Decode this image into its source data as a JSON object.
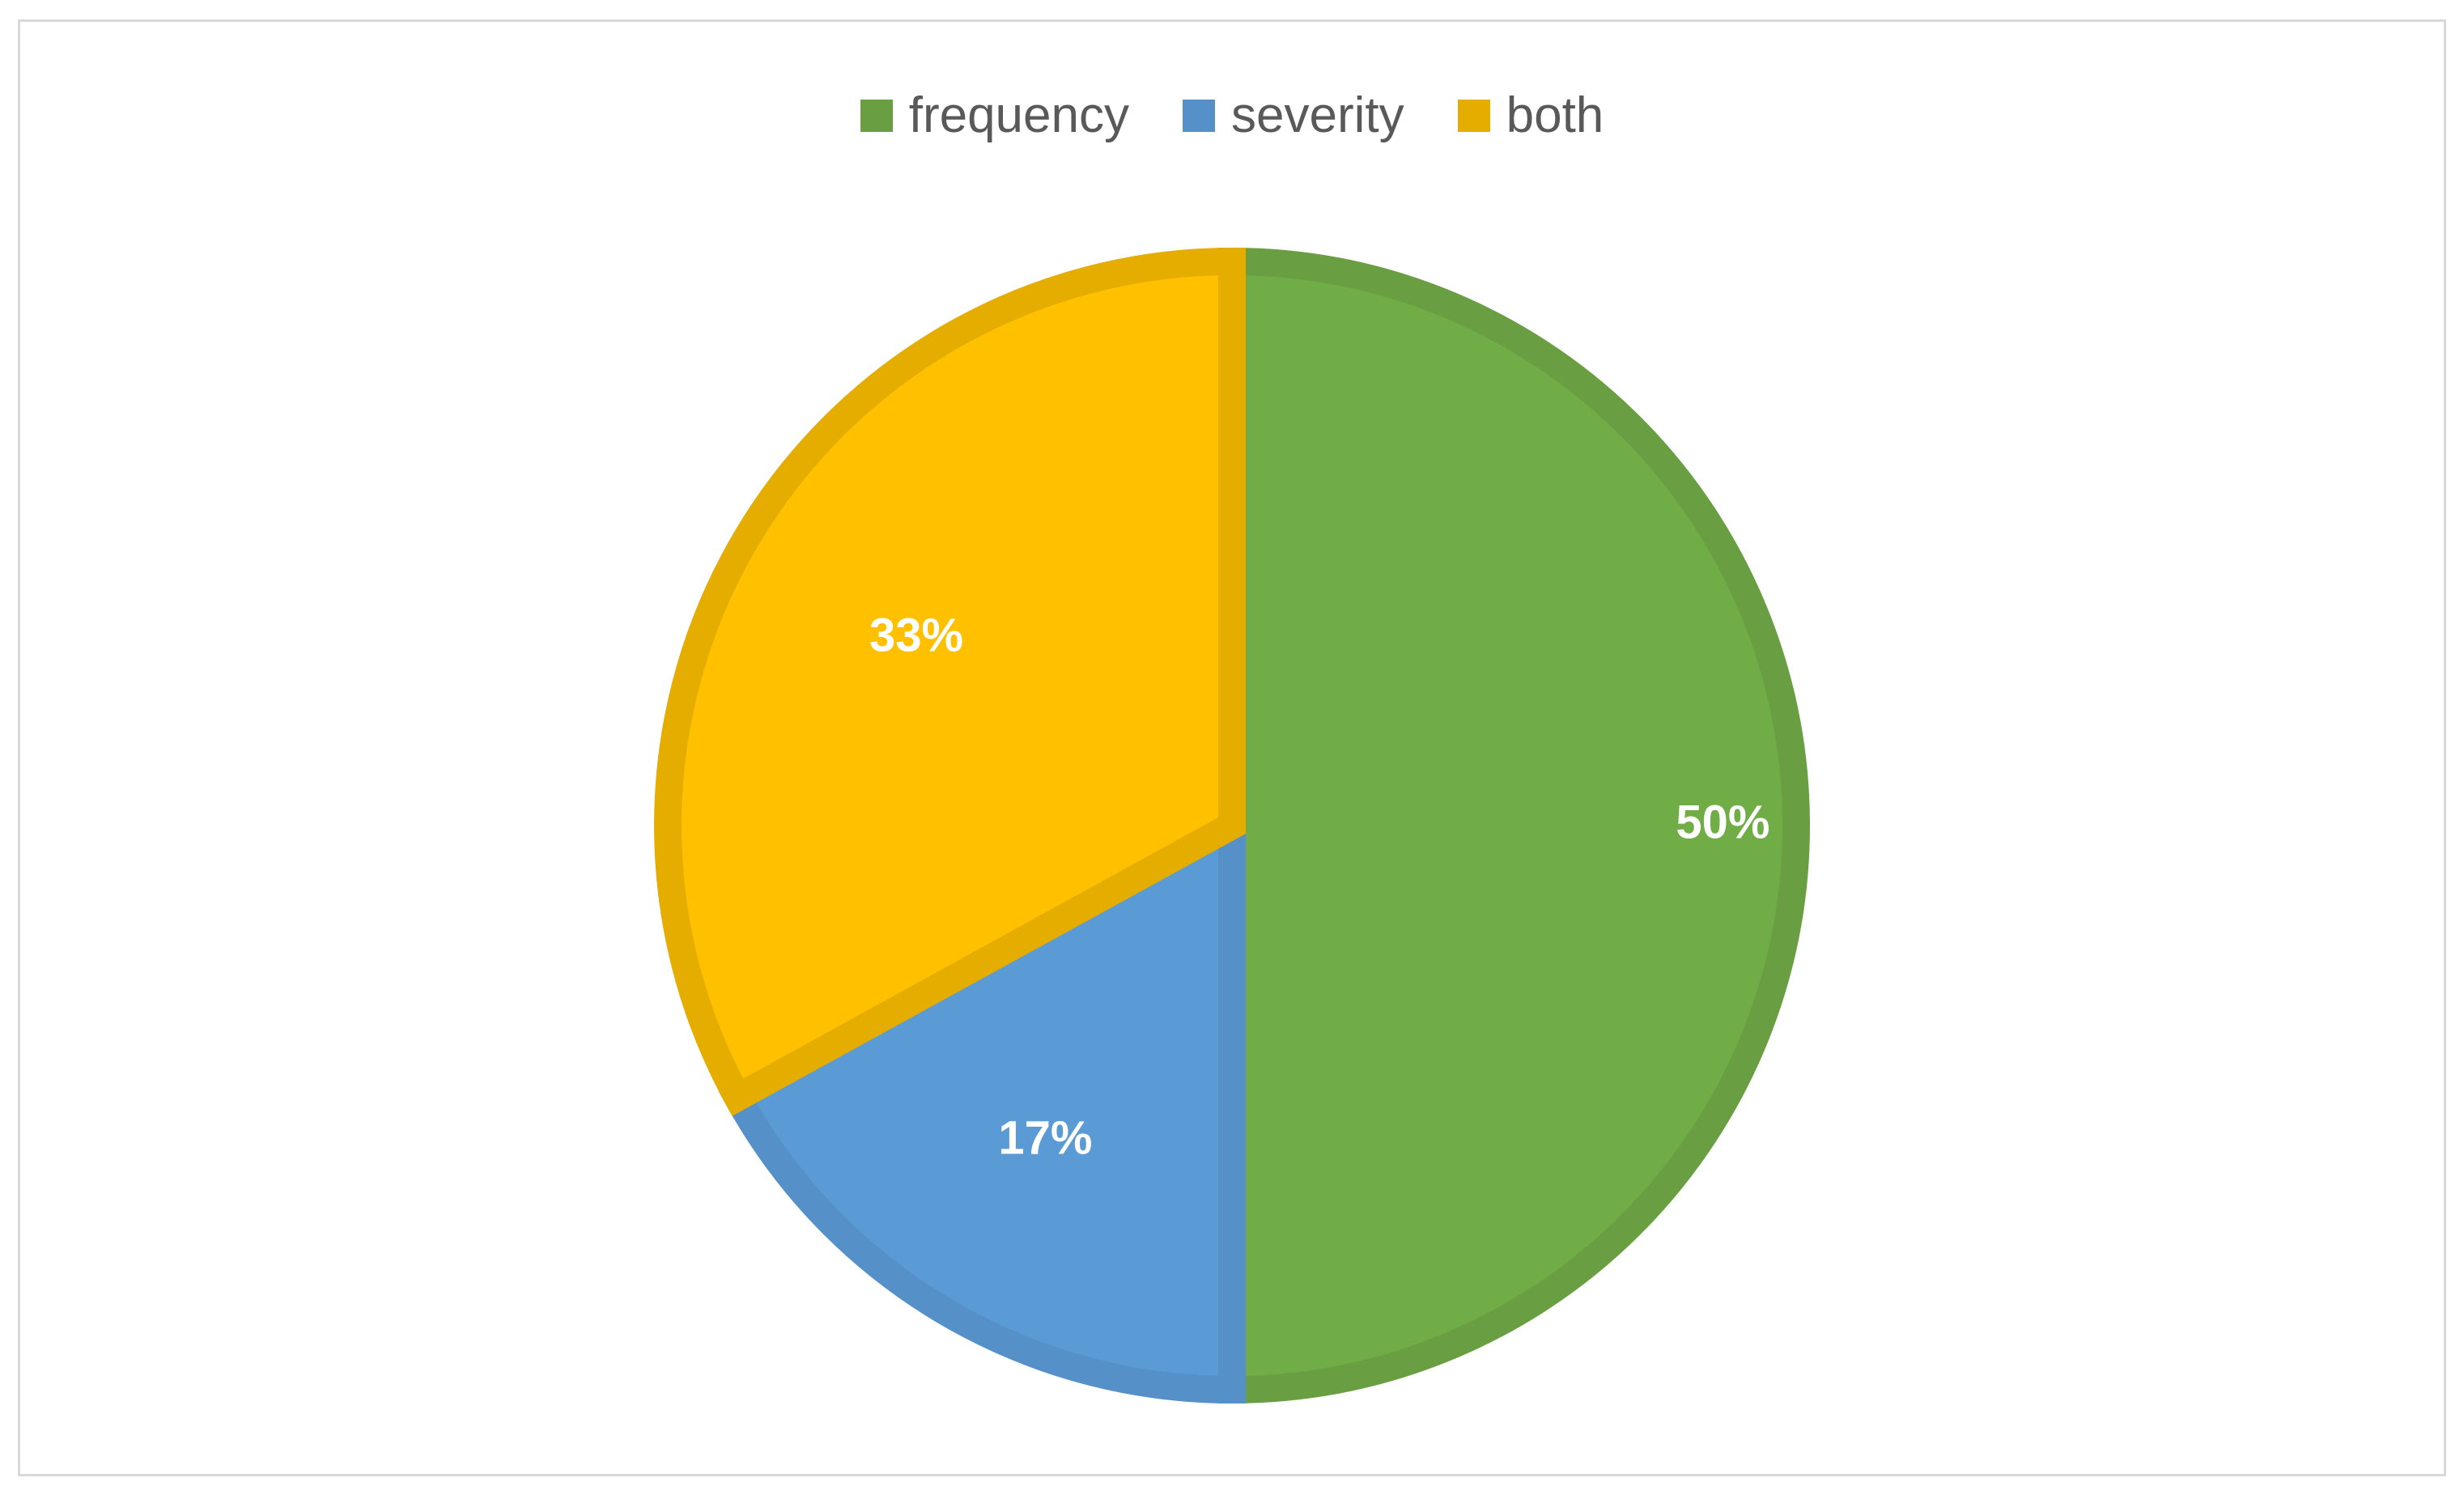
{
  "chart_data": {
    "type": "pie",
    "categories": [
      "frequency",
      "severity",
      "both"
    ],
    "values": [
      50,
      17,
      33
    ],
    "data_labels": [
      "50%",
      "17%",
      "33%"
    ],
    "colors": [
      "#70AD47",
      "#5B9BD5",
      "#FFC000"
    ],
    "border_colors": [
      "#6A9E42",
      "#5590C9",
      "#E5AD00"
    ],
    "legend": "top",
    "start_angle": "12 o'clock",
    "direction": "clockwise"
  }
}
